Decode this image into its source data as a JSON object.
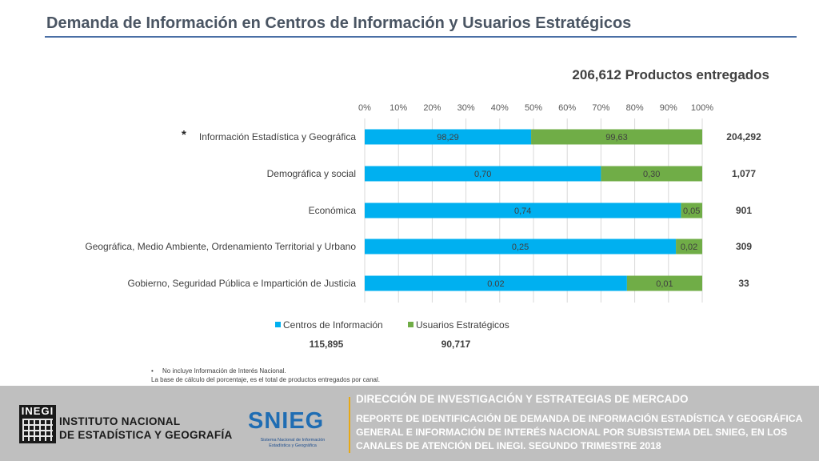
{
  "header": {
    "title": "Demanda de Información en Centros de Información y Usuarios Estratégicos",
    "total_delivered": "206,612 Productos entregados"
  },
  "chart_data": {
    "type": "bar",
    "orientation": "horizontal",
    "stacked": "percent",
    "x_ticks": [
      "0%",
      "10%",
      "20%",
      "30%",
      "40%",
      "50%",
      "60%",
      "70%",
      "80%",
      "90%",
      "100%"
    ],
    "xlim": [
      0,
      100
    ],
    "grid": true,
    "categories": [
      "Información Estadística y Geográfica",
      "Demográfica y social",
      "Económica",
      "Geográfica, Medio Ambiente, Ordenamiento Territorial y Urbano",
      "Gobierno, Seguridad Pública e Impartición de Justicia"
    ],
    "category_markers": [
      "*",
      "",
      "",
      "",
      ""
    ],
    "series": [
      {
        "name": "Centros de Información",
        "color": "#00b0f0",
        "percent_values": [
          49.3,
          70.0,
          93.7,
          92.2,
          77.7
        ],
        "labels": [
          "98,29",
          "0,70",
          "0,74",
          "0,25",
          "0.02"
        ],
        "total": "115,895"
      },
      {
        "name": "Usuarios Estratégicos",
        "color": "#70ad47",
        "percent_values": [
          50.7,
          30.0,
          6.3,
          7.8,
          22.3
        ],
        "labels": [
          "99,63",
          "0,30",
          "0,05",
          "0,02",
          "0,01"
        ],
        "total": "90,717"
      }
    ],
    "row_totals": [
      "204,292",
      "1,077",
      "901",
      "309",
      "33"
    ],
    "legend_position": "bottom"
  },
  "footnotes": [
    "No incluye Información de Interés Nacional.",
    "La base de cálculo del porcentaje, es el total de productos entregados por canal."
  ],
  "footer": {
    "logo_text": "INEGI",
    "institute_line1": "INSTITUTO NACIONAL",
    "institute_line2": "DE ESTADÍSTICA Y GEOGRAFÍA",
    "snieg_logo": "SNIEG",
    "snieg_subtitle": "Sistema Nacional de Información Estadística y Geográfica",
    "direction": "DIRECCIÓN DE INVESTIGACIÓN Y ESTRATEGIAS DE MERCADO",
    "report": "REPORTE DE IDENTIFICACIÓN DE DEMANDA DE INFORMACIÓN ESTADÍSTICA Y GEOGRÁFICA GENERAL E INFORMACIÓN DE INTERÉS NACIONAL POR SUBSISTEMA DEL SNIEG, EN LOS CANALES DE ATENCIÓN DEL INEGI. SEGUNDO TRIMESTRE 2018",
    "accent_color": "#e6a817"
  }
}
